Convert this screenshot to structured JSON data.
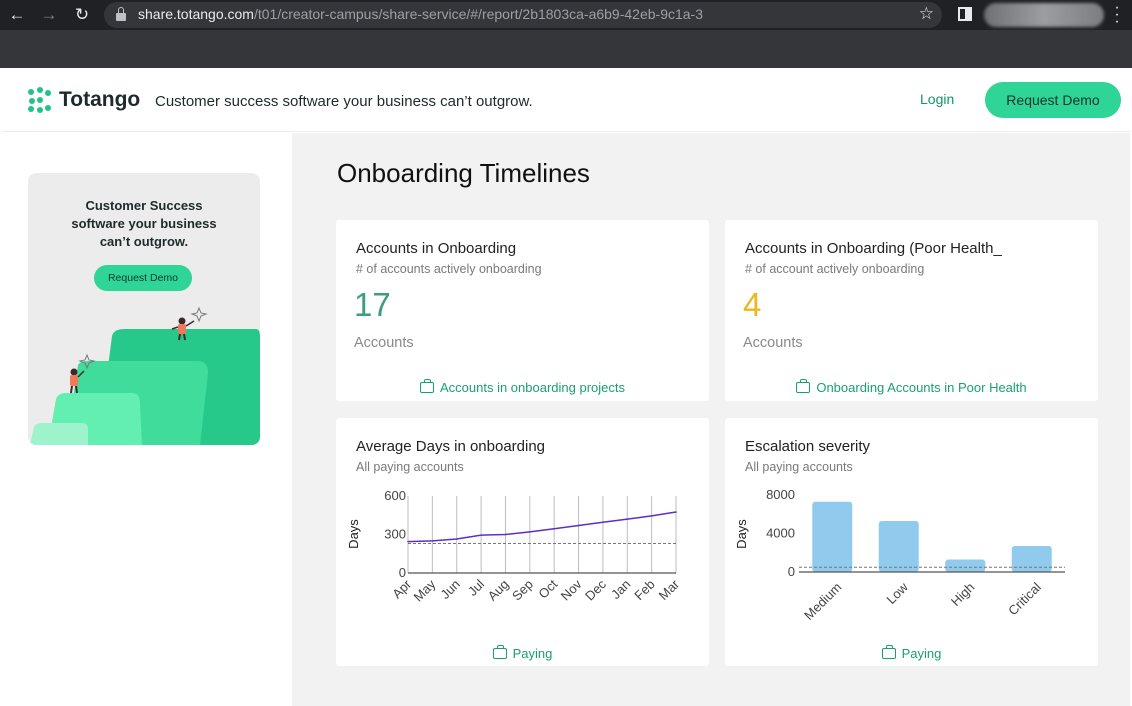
{
  "browser": {
    "url_host": "share.totango.com",
    "url_path": "/t01/creator-campus/share-service/#/report/2b1803ca-a6b9-42eb-9c1a-3"
  },
  "header": {
    "brand": "Totango",
    "tagline": "Customer success software your business can’t outgrow.",
    "login_label": "Login",
    "demo_label": "Request Demo",
    "brand_color": "#2ed597"
  },
  "sidebar": {
    "promo_line1": "Customer Success",
    "promo_line2": "software your business",
    "promo_line3": "can’t outgrow.",
    "promo_button": "Request Demo"
  },
  "page": {
    "title": "Onboarding Timelines"
  },
  "cards": {
    "onboarding": {
      "title": "Accounts in Onboarding",
      "subtitle": "# of accounts actively onboarding",
      "value": "17",
      "unit": "Accounts",
      "link": "Accounts in onboarding projects",
      "value_color": "#3a9e7f"
    },
    "poor_health": {
      "title": "Accounts in Onboarding (Poor Health_",
      "subtitle": "# of account actively onboarding",
      "value": "4",
      "unit": "Accounts",
      "link": "Onboarding Accounts in Poor Health",
      "value_color": "#e8b923"
    },
    "avg_days": {
      "title": "Average Days in onboarding",
      "subtitle": "All paying accounts",
      "link": "Paying"
    },
    "escalation": {
      "title": "Escalation severity",
      "subtitle": "All paying accounts",
      "link": "Paying"
    }
  },
  "chart_data": [
    {
      "type": "line",
      "ylabel": "Days",
      "categories": [
        "Apr",
        "May",
        "Jun",
        "Jul",
        "Aug",
        "Sep",
        "Oct",
        "Nov",
        "Dec",
        "Jan",
        "Feb",
        "Mar"
      ],
      "values": [
        245,
        250,
        265,
        295,
        300,
        320,
        345,
        370,
        395,
        420,
        445,
        475
      ],
      "reference_line": 230,
      "ylim": [
        0,
        600
      ],
      "yticks": [
        0,
        300,
        600
      ],
      "color": "#5b2fc9",
      "grid": "vertical"
    },
    {
      "type": "bar",
      "ylabel": "Days",
      "categories": [
        "Medium",
        "Low",
        "High",
        "Critical"
      ],
      "values": [
        7300,
        5300,
        1300,
        2700
      ],
      "reference_line": 500,
      "ylim": [
        0,
        8000
      ],
      "yticks": [
        0,
        4000,
        8000
      ],
      "color": "#90cbee"
    }
  ]
}
